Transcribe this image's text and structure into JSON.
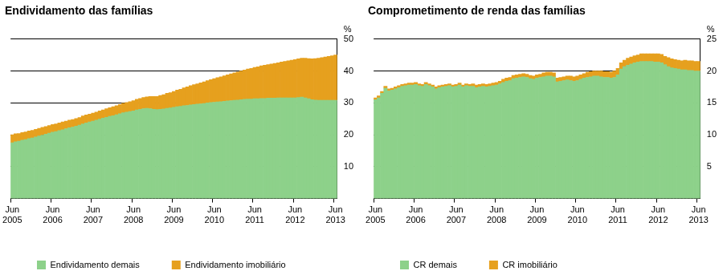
{
  "chart_data": [
    {
      "type": "bar",
      "title": "Endividamento das famílias",
      "ylabel": "%",
      "stacked": true,
      "grid": true,
      "legend": "bottom",
      "ylim": [
        0,
        50
      ],
      "yticks": [
        10,
        20,
        30,
        40,
        50
      ],
      "categories": [
        "Jun 2005",
        null,
        null,
        null,
        null,
        null,
        null,
        null,
        null,
        null,
        null,
        null,
        "Jun 2006",
        null,
        null,
        null,
        null,
        null,
        null,
        null,
        null,
        null,
        null,
        null,
        "Jun 2007",
        null,
        null,
        null,
        null,
        null,
        null,
        null,
        null,
        null,
        null,
        null,
        "Jun 2008",
        null,
        null,
        null,
        null,
        null,
        null,
        null,
        null,
        null,
        null,
        null,
        "Jun 2009",
        null,
        null,
        null,
        null,
        null,
        null,
        null,
        null,
        null,
        null,
        null,
        "Jun 2010",
        null,
        null,
        null,
        null,
        null,
        null,
        null,
        null,
        null,
        null,
        null,
        "Jun 2011",
        null,
        null,
        null,
        null,
        null,
        null,
        null,
        null,
        null,
        null,
        null,
        "Jun 2012",
        null,
        null,
        null,
        null,
        null,
        null,
        null,
        null,
        null,
        null,
        null,
        "Jun 2013"
      ],
      "series": [
        {
          "name": "Endividamento demais",
          "color": "#8dd18a",
          "values": [
            17.5,
            17.8,
            18.0,
            18.3,
            18.5,
            18.8,
            19.0,
            19.3,
            19.6,
            19.9,
            20.2,
            20.5,
            20.8,
            21.0,
            21.3,
            21.6,
            21.9,
            22.2,
            22.4,
            22.7,
            23.0,
            23.4,
            23.7,
            24.0,
            24.3,
            24.6,
            24.9,
            25.2,
            25.5,
            25.8,
            26.0,
            26.3,
            26.6,
            26.9,
            27.1,
            27.3,
            27.5,
            27.8,
            28.0,
            28.2,
            28.3,
            28.2,
            28.0,
            27.9,
            28.0,
            28.1,
            28.3,
            28.4,
            28.6,
            28.8,
            28.9,
            29.1,
            29.2,
            29.4,
            29.5,
            29.6,
            29.7,
            29.8,
            30.0,
            30.1,
            30.2,
            30.3,
            30.4,
            30.5,
            30.6,
            30.7,
            30.8,
            30.9,
            31.0,
            31.1,
            31.2,
            31.2,
            31.3,
            31.3,
            31.4,
            31.4,
            31.5,
            31.5,
            31.5,
            31.6,
            31.6,
            31.6,
            31.6,
            31.6,
            31.6,
            31.7,
            31.8,
            31.6,
            31.3,
            31.0,
            30.9,
            30.8,
            30.8,
            30.8,
            30.8,
            30.8,
            30.8
          ]
        },
        {
          "name": "Endividamento imobiliário",
          "color": "#e6a01e",
          "values": [
            2.5,
            2.5,
            2.4,
            2.4,
            2.4,
            2.4,
            2.4,
            2.4,
            2.4,
            2.4,
            2.4,
            2.4,
            2.4,
            2.4,
            2.4,
            2.4,
            2.4,
            2.4,
            2.4,
            2.4,
            2.4,
            2.5,
            2.5,
            2.5,
            2.5,
            2.5,
            2.6,
            2.6,
            2.7,
            2.7,
            2.8,
            2.8,
            2.9,
            3.0,
            3.0,
            3.1,
            3.2,
            3.3,
            3.4,
            3.5,
            3.6,
            3.8,
            4.0,
            4.1,
            4.3,
            4.5,
            4.7,
            4.8,
            5.0,
            5.2,
            5.4,
            5.6,
            5.8,
            6.0,
            6.2,
            6.4,
            6.6,
            6.8,
            7.0,
            7.2,
            7.4,
            7.6,
            7.8,
            8.0,
            8.2,
            8.4,
            8.6,
            8.8,
            9.0,
            9.2,
            9.4,
            9.6,
            9.8,
            10.0,
            10.2,
            10.4,
            10.5,
            10.7,
            10.9,
            11.0,
            11.2,
            11.4,
            11.6,
            11.8,
            12.0,
            12.1,
            12.2,
            12.4,
            12.6,
            12.8,
            13.0,
            13.2,
            13.4,
            13.6,
            13.8,
            14.0,
            14.2
          ]
        }
      ]
    },
    {
      "type": "bar",
      "title": "Comprometimento de renda das famílias",
      "ylabel": "%",
      "stacked": true,
      "grid": true,
      "legend": "bottom",
      "ylim": [
        0,
        25
      ],
      "yticks": [
        5,
        10,
        15,
        20,
        25
      ],
      "categories": [
        "Jun 2005",
        null,
        null,
        null,
        null,
        null,
        null,
        null,
        null,
        null,
        null,
        null,
        "Jun 2006",
        null,
        null,
        null,
        null,
        null,
        null,
        null,
        null,
        null,
        null,
        null,
        "Jun 2007",
        null,
        null,
        null,
        null,
        null,
        null,
        null,
        null,
        null,
        null,
        null,
        "Jun 2008",
        null,
        null,
        null,
        null,
        null,
        null,
        null,
        null,
        null,
        null,
        null,
        "Jun 2009",
        null,
        null,
        null,
        null,
        null,
        null,
        null,
        null,
        null,
        null,
        null,
        "Jun 2010",
        null,
        null,
        null,
        null,
        null,
        null,
        null,
        null,
        null,
        null,
        null,
        "Jun 2011",
        null,
        null,
        null,
        null,
        null,
        null,
        null,
        null,
        null,
        null,
        null,
        "Jun 2012",
        null,
        null,
        null,
        null,
        null,
        null,
        null,
        null,
        null,
        null,
        null,
        "Jun 2013"
      ],
      "series": [
        {
          "name": "CR demais",
          "color": "#8dd18a",
          "values": [
            15.5,
            15.8,
            16.5,
            17.3,
            16.9,
            17.0,
            17.2,
            17.4,
            17.6,
            17.7,
            17.8,
            17.8,
            17.9,
            17.7,
            17.6,
            17.9,
            17.7,
            17.5,
            17.2,
            17.4,
            17.5,
            17.6,
            17.7,
            17.5,
            17.6,
            17.8,
            17.5,
            17.7,
            17.6,
            17.6,
            17.4,
            17.5,
            17.6,
            17.5,
            17.6,
            17.7,
            17.8,
            18.0,
            18.2,
            18.4,
            18.5,
            18.8,
            18.9,
            19.0,
            19.1,
            19.0,
            18.8,
            18.7,
            18.9,
            19.0,
            19.1,
            19.2,
            19.2,
            19.1,
            18.3,
            18.4,
            18.5,
            18.6,
            18.5,
            18.4,
            18.5,
            18.7,
            18.9,
            19.0,
            19.1,
            19.2,
            19.2,
            19.1,
            19.0,
            19.0,
            18.9,
            19.0,
            19.4,
            20.3,
            20.7,
            20.9,
            21.1,
            21.3,
            21.4,
            21.5,
            21.5,
            21.5,
            21.5,
            21.4,
            21.4,
            21.3,
            21.0,
            20.7,
            20.5,
            20.4,
            20.3,
            20.2,
            20.2,
            20.1,
            20.1,
            20.0,
            20.0
          ]
        },
        {
          "name": "CR imobiliário",
          "color": "#e6a01e",
          "values": [
            0.3,
            0.3,
            0.3,
            0.3,
            0.3,
            0.3,
            0.3,
            0.3,
            0.3,
            0.3,
            0.3,
            0.3,
            0.3,
            0.3,
            0.3,
            0.3,
            0.3,
            0.3,
            0.3,
            0.3,
            0.3,
            0.3,
            0.3,
            0.3,
            0.3,
            0.3,
            0.3,
            0.3,
            0.3,
            0.4,
            0.4,
            0.4,
            0.4,
            0.4,
            0.4,
            0.4,
            0.4,
            0.4,
            0.5,
            0.5,
            0.5,
            0.5,
            0.5,
            0.5,
            0.5,
            0.5,
            0.5,
            0.5,
            0.5,
            0.5,
            0.6,
            0.6,
            0.6,
            0.6,
            0.6,
            0.6,
            0.6,
            0.6,
            0.7,
            0.7,
            0.7,
            0.7,
            0.7,
            0.8,
            0.8,
            0.8,
            0.8,
            0.9,
            0.9,
            0.9,
            0.9,
            1.0,
            1.0,
            1.0,
            1.0,
            1.1,
            1.1,
            1.1,
            1.1,
            1.2,
            1.2,
            1.2,
            1.2,
            1.3,
            1.3,
            1.3,
            1.3,
            1.4,
            1.4,
            1.4,
            1.4,
            1.4,
            1.5,
            1.5,
            1.5,
            1.5,
            1.5
          ]
        }
      ]
    }
  ]
}
